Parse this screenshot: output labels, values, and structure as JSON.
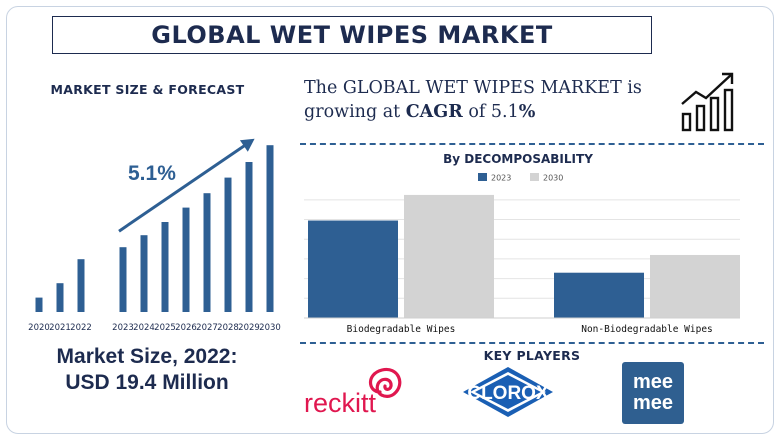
{
  "page": {
    "title": "GLOBAL WET WIPES MARKET",
    "left_heading": "MARKET SIZE & FORECAST",
    "cagr_line1": "The GLOBAL WET WIPES MARKET is",
    "cagr_line2_prefix": "growing at ",
    "cagr_line2_bold": "CAGR",
    "cagr_line2_mid": " of 5.1",
    "cagr_line2_suffix": "%",
    "market_size_line1": "Market Size, 2022:",
    "market_size_line2": "USD 19.4 Million",
    "key_players_heading": "KEY PLAYERS",
    "growth_icon": "growth-chart-icon",
    "colors": {
      "navy": "#1d2b4f",
      "bar_blue": "#2e5f93",
      "bar_grey": "#d3d3d3",
      "accent_red": "#d81b4b"
    }
  },
  "key_players": {
    "reckitt": "reckitt",
    "clorox": "CLOROX",
    "meemee_line1": "mee",
    "meemee_line2": "mee"
  },
  "chart_data": [
    {
      "type": "bar",
      "categories": [
        "2020",
        "2021",
        "2022",
        "2023",
        "2024",
        "2025",
        "2026",
        "2027",
        "2028",
        "2029",
        "2030"
      ],
      "values": [
        16.2,
        17.4,
        19.4,
        20.4,
        21.4,
        22.5,
        23.7,
        24.9,
        26.2,
        27.5,
        28.9
      ],
      "annotation": "5.1%",
      "ylim": [
        15,
        30
      ],
      "grid": false
    },
    {
      "type": "bar",
      "title": "By DECOMPOSABILITY",
      "categories": [
        "Biodegradable Wipes",
        "Non-Biodegradable Wipes"
      ],
      "series": [
        {
          "name": "2023",
          "values": [
            9.9,
            4.6
          ]
        },
        {
          "name": "2030",
          "values": [
            12.5,
            6.4
          ]
        }
      ],
      "ylim": [
        0,
        13
      ],
      "grid": true,
      "legend": "top-center"
    }
  ]
}
